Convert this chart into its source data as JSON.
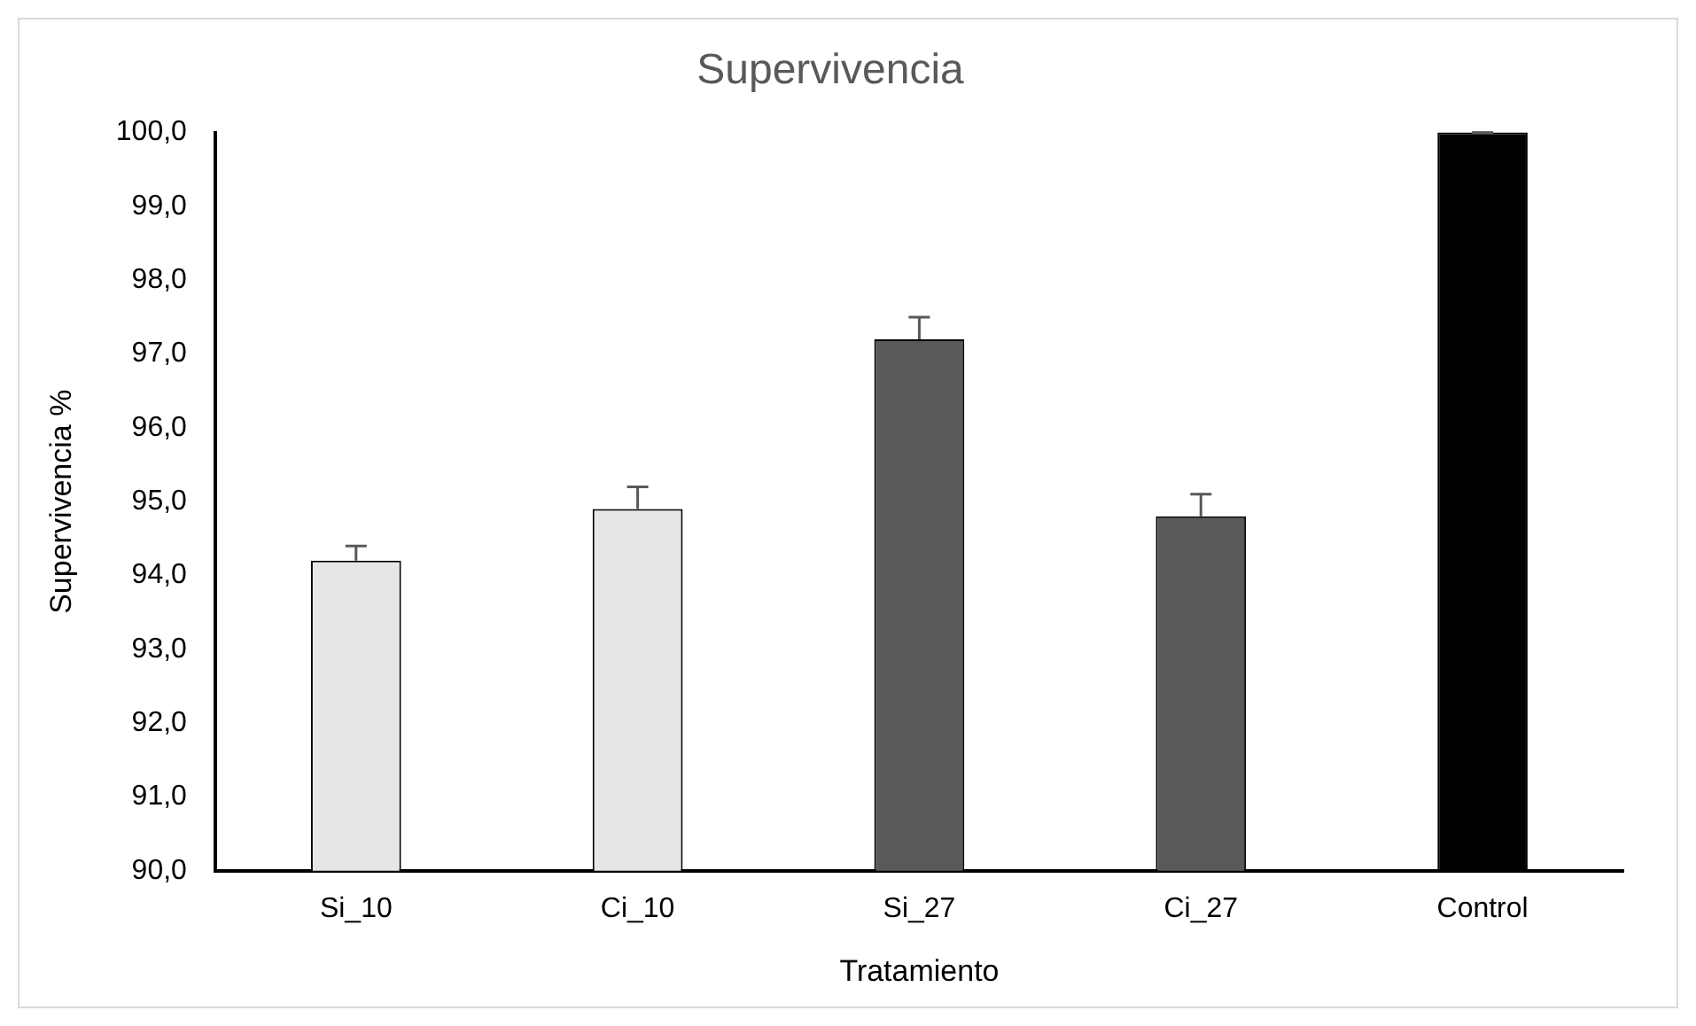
{
  "chart_data": {
    "type": "bar",
    "title": "Supervivencia",
    "xlabel": "Tratamiento",
    "ylabel": "Supervivencia %",
    "categories": [
      "Si_10",
      "Ci_10",
      "Si_27",
      "Ci_27",
      "Control"
    ],
    "values": [
      94.2,
      94.9,
      97.2,
      94.8,
      100
    ],
    "colors": [
      "#e6e6e6",
      "#e6e6e6",
      "#595959",
      "#595959",
      "#000000"
    ],
    "errors": [
      0.2,
      0.3,
      0.3,
      0.3,
      0
    ],
    "ylim": [
      90,
      100
    ],
    "yticks": [
      {
        "value": 90,
        "label": "90,0"
      },
      {
        "value": 91,
        "label": "91,0"
      },
      {
        "value": 92,
        "label": "92,0"
      },
      {
        "value": 93,
        "label": "93,0"
      },
      {
        "value": 94,
        "label": "94,0"
      },
      {
        "value": 95,
        "label": "95,0"
      },
      {
        "value": 96,
        "label": "96,0"
      },
      {
        "value": 97,
        "label": "97,0"
      },
      {
        "value": 98,
        "label": "98,0"
      },
      {
        "value": 99,
        "label": "99,0"
      },
      {
        "value": 100,
        "label": "100,0"
      }
    ],
    "grid": false,
    "legend": false
  }
}
